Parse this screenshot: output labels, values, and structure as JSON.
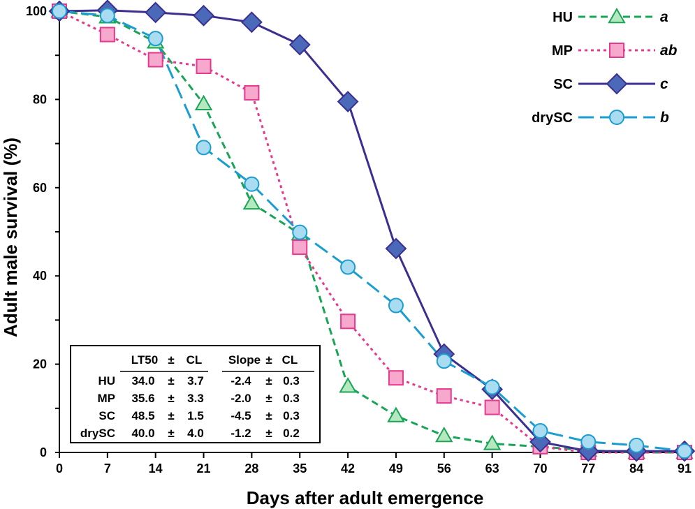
{
  "chart_data": {
    "type": "line",
    "title": "",
    "xlabel": "Days after adult emergence",
    "ylabel": "Adult male survival (%)",
    "xlim": [
      0,
      91
    ],
    "ylim": [
      0,
      100
    ],
    "x_ticks": [
      "0",
      "7",
      "14",
      "21",
      "28",
      "35",
      "42",
      "49",
      "56",
      "63",
      "70",
      "77",
      "84",
      "91"
    ],
    "y_ticks": [
      "0",
      "20",
      "40",
      "60",
      "80",
      "100"
    ],
    "grid": false,
    "legend_position": "top-right",
    "series": [
      {
        "name": "HU",
        "group": "a",
        "color": "#1aa456",
        "fill": "#b6e8bf",
        "marker": "triangle",
        "dash": "10,6",
        "stroke_width": 3,
        "x": [
          0,
          7,
          14,
          21,
          28,
          35,
          42,
          49,
          56,
          63,
          70,
          77,
          84,
          91
        ],
        "y": [
          100,
          98.7,
          93,
          79,
          56.5,
          49.5,
          15,
          8.3,
          3.8,
          2,
          1.3,
          0.5,
          0,
          0
        ]
      },
      {
        "name": "MP",
        "group": "ab",
        "color": "#e6388f",
        "fill": "#f6a8cd",
        "marker": "square",
        "dash": "4,5",
        "stroke_width": 3,
        "x": [
          0,
          7,
          14,
          21,
          28,
          35,
          42,
          49,
          56,
          63,
          70,
          77,
          84,
          91
        ],
        "y": [
          100,
          94.7,
          89,
          87.5,
          81.5,
          46.5,
          29.7,
          16.9,
          12.8,
          10.2,
          1.3,
          0,
          0,
          0
        ]
      },
      {
        "name": "SC",
        "group": "c",
        "color": "#3b2f8f",
        "fill": "#4a69b8",
        "marker": "diamond",
        "dash": "",
        "stroke_width": 3,
        "x": [
          0,
          7,
          14,
          21,
          28,
          35,
          42,
          49,
          56,
          63,
          70,
          77,
          84,
          91
        ],
        "y": [
          100,
          100.2,
          99.7,
          99,
          97.5,
          92.4,
          79.5,
          46.2,
          22.3,
          14.3,
          2.4,
          0.3,
          0.3,
          0.3
        ]
      },
      {
        "name": "drySC",
        "group": "b",
        "color": "#1b9dd0",
        "fill": "#a9dcf1",
        "marker": "circle",
        "dash": "22,9",
        "stroke_width": 3,
        "x": [
          0,
          7,
          14,
          21,
          28,
          35,
          42,
          49,
          56,
          63,
          70,
          77,
          84,
          91
        ],
        "y": [
          100,
          99,
          93.8,
          69.1,
          60.8,
          49.9,
          42,
          33.3,
          20.7,
          14.8,
          4.9,
          2.4,
          1.6,
          0.3
        ]
      }
    ],
    "stats_table": {
      "headers": [
        "LT50",
        "±",
        "CL",
        "Slope",
        "±",
        "CL"
      ],
      "rows": [
        [
          "HU",
          "34.0",
          "±",
          "3.7",
          "-2.4",
          "±",
          "0.3"
        ],
        [
          "MP",
          "35.6",
          "±",
          "3.3",
          "-2.0",
          "±",
          "0.3"
        ],
        [
          "SC",
          "48.5",
          "±",
          "1.5",
          "-4.5",
          "±",
          "0.3"
        ],
        [
          "drySC",
          "40.0",
          "±",
          "4.0",
          "-1.2",
          "±",
          "0.2"
        ]
      ]
    }
  }
}
